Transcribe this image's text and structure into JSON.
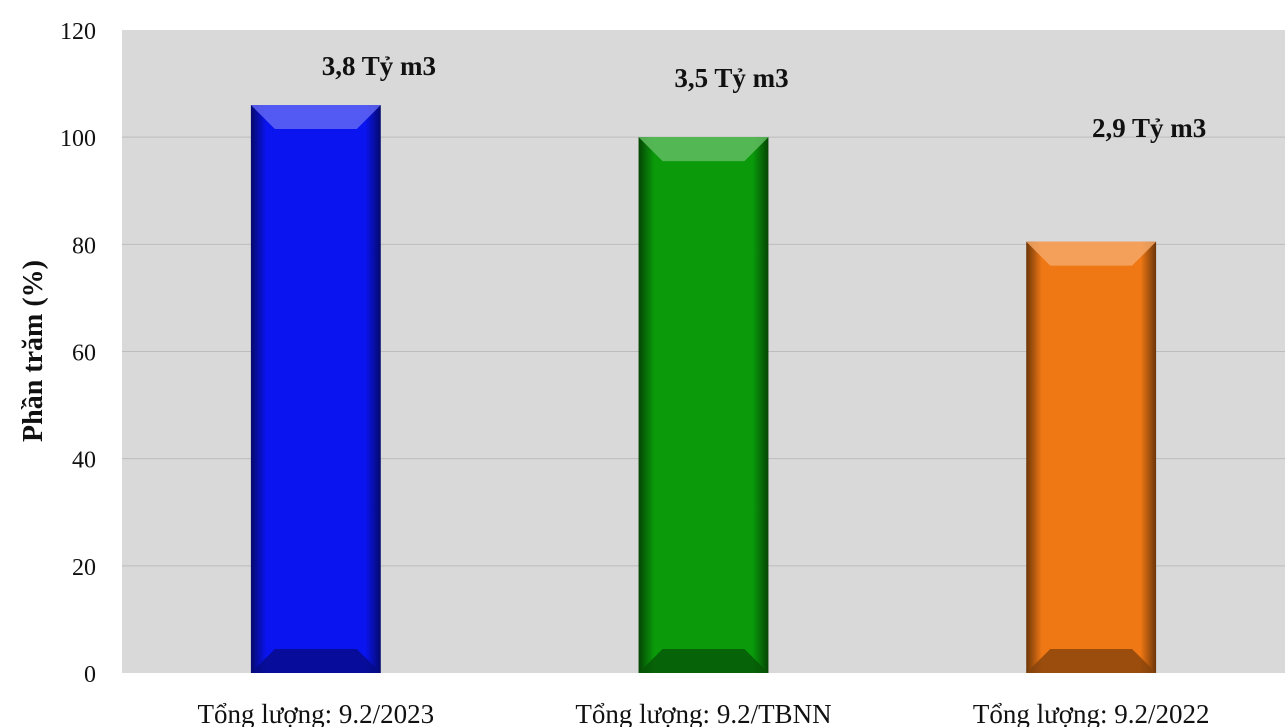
{
  "chart_data": {
    "type": "bar",
    "title": "",
    "xlabel": "",
    "ylabel": "Phần trăm (%)",
    "ylim": [
      0,
      120
    ],
    "yticks": [
      0,
      20,
      40,
      60,
      80,
      100,
      120
    ],
    "grid": true,
    "categories": [
      "Tổng lượng: 9.2/2023",
      "Tổng lượng: 9.2/TBNN",
      "Tổng lượng: 9.2/2022"
    ],
    "values": [
      106,
      100,
      80.5
    ],
    "data_labels": [
      "3,8 Tỷ m3",
      "3,5 Tỷ m3",
      "2,9 Tỷ m3"
    ],
    "colors": [
      "#0a14f0",
      "#0a9a0a",
      "#f07814"
    ],
    "plot_background": "#d9d9d9"
  }
}
